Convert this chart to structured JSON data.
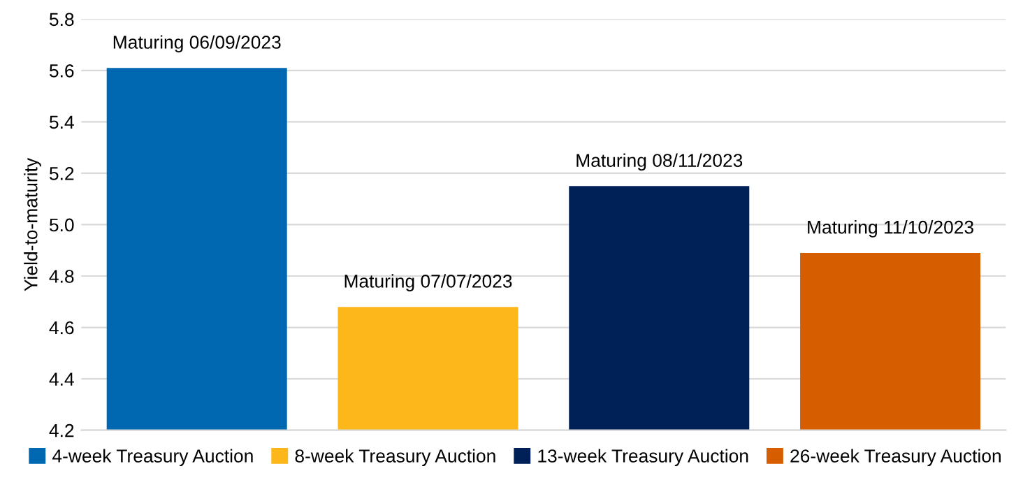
{
  "chart_data": {
    "type": "bar",
    "ylabel": "Yield-to-maturity",
    "categories": [
      null
    ],
    "series": [
      {
        "name": "4-week Treasury Auction",
        "color": "#0067b1",
        "values": [
          5.61
        ]
      },
      {
        "name": "8-week Treasury Auction",
        "color": "#fdb71a",
        "values": [
          4.68
        ]
      },
      {
        "name": "13-week Treasury Auction",
        "color": "#002157",
        "values": [
          5.15
        ]
      },
      {
        "name": "26-week Treasury Auction",
        "color": "#d75e00",
        "values": [
          4.89
        ]
      }
    ],
    "annotations": [
      {
        "text": "Maturing 06/09/2023",
        "y": 5.61
      },
      {
        "text": "Maturing 07/07/2023",
        "y": 4.68
      },
      {
        "text": "Maturing 08/11/2023",
        "y": 5.15
      },
      {
        "text": "Maturing 11/10/2023",
        "y": 4.89
      }
    ],
    "ylim": [
      4.2,
      5.8
    ],
    "yticks": [
      4.2,
      4.4,
      4.6,
      4.8,
      {
        "value": 5,
        "label": "5.0"
      },
      5.2,
      5.4,
      5.6,
      5.8
    ],
    "grid": "y",
    "legend": "bottom"
  }
}
